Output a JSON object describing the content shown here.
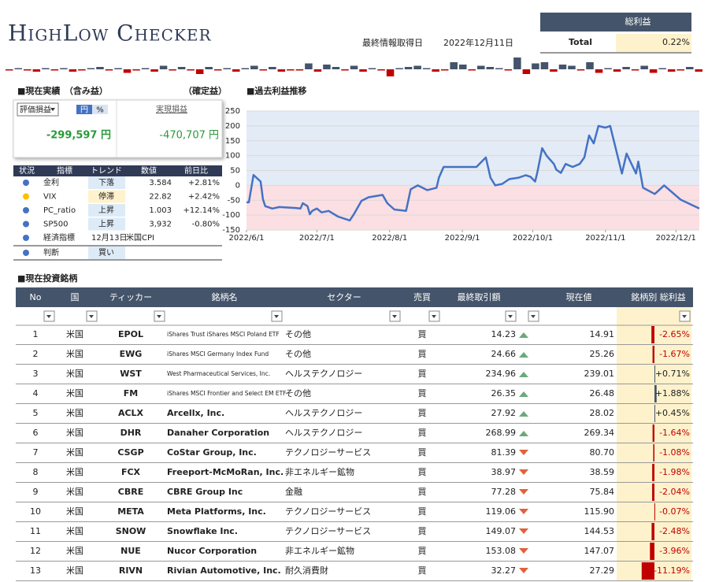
{
  "header": {
    "title": "HighLow Checker",
    "updated_label": "最終情報取得日",
    "updated_date": "2022年12月11日",
    "summary": {
      "heading": "総利益",
      "label": "Total",
      "value_label": "0.22%"
    }
  },
  "daily_bars": {
    "pos_color": "#44546a",
    "neg_color": "#c00000",
    "values": [
      -1,
      1,
      -1,
      -2,
      1,
      -1,
      1,
      -2,
      -1,
      1,
      2,
      -1,
      1,
      -3,
      -1,
      1,
      -2,
      3,
      -1,
      2,
      -1,
      -4,
      2,
      -1,
      1,
      -2,
      1,
      3,
      -1,
      2,
      -2,
      -1,
      -1,
      5,
      -2,
      4,
      2,
      -1,
      3,
      -2,
      1,
      -1,
      -6,
      1,
      2,
      3,
      1,
      -2,
      -1,
      6,
      4,
      -1,
      3,
      2,
      1,
      -1,
      10,
      -4,
      5,
      6,
      -2,
      4,
      3,
      -1,
      6,
      -3,
      1,
      -2,
      2,
      -1,
      3,
      -3,
      1,
      -2,
      -1,
      2,
      -2
    ]
  },
  "performance": {
    "title": "■現在実績　（含み益）",
    "realized_title": "（確定益）",
    "select": "評価損益",
    "unit_toggle": [
      "円",
      "%"
    ],
    "unrealized": "-299,597 円",
    "realized_label": "実現損益",
    "realized": "-470,707 円"
  },
  "indicators": {
    "headers": [
      "状況",
      "指標",
      "トレンド",
      "数値",
      "前日比"
    ],
    "rows": [
      {
        "status_color": "#4472c4",
        "name": "金利",
        "trend": "下落",
        "trend_bg": "#ddebf7",
        "value": "3.584",
        "change": "+2.81%"
      },
      {
        "status_color": "#ffc000",
        "name": "VIX",
        "trend": "停滞",
        "trend_bg": "#fff2cc",
        "value": "22.82",
        "change": "+2.42%"
      },
      {
        "status_color": "#4472c4",
        "name": "PC_ratio",
        "trend": "上昇",
        "trend_bg": "#ddebf7",
        "value": "1.003",
        "change": "+12.14%"
      },
      {
        "status_color": "#4472c4",
        "name": "SP500",
        "trend": "上昇",
        "trend_bg": "#ddebf7",
        "value": "3,932",
        "change": "-0.80%"
      }
    ],
    "econ": {
      "status_color": "#4472c4",
      "name": "経済指標",
      "date": "12月13日",
      "event": "米国CPI"
    },
    "judgment": {
      "status_color": "#4472c4",
      "name": "判断",
      "value": "買い",
      "value_bg": "#ddebf7"
    }
  },
  "chart_data": {
    "type": "line",
    "title": "■過去利益推移",
    "x": [
      "2022/6/1",
      "2022/6/2",
      "2022/6/4",
      "2022/6/7",
      "2022/6/8",
      "2022/6/9",
      "2022/6/12",
      "2022/6/15",
      "2022/6/22",
      "2022/6/24",
      "2022/6/25",
      "2022/6/27",
      "2022/6/28",
      "2022/6/29",
      "2022/7/1",
      "2022/7/3",
      "2022/7/6",
      "2022/7/10",
      "2022/7/15",
      "2022/7/17",
      "2022/7/20",
      "2022/7/23",
      "2022/7/29",
      "2022/7/31",
      "2022/8/3",
      "2022/8/8",
      "2022/8/10",
      "2022/8/13",
      "2022/8/17",
      "2022/8/21",
      "2022/8/22",
      "2022/8/24",
      "2022/8/29",
      "2022/9/7",
      "2022/9/11",
      "2022/9/13",
      "2022/9/15",
      "2022/9/18",
      "2022/9/21",
      "2022/9/25",
      "2022/9/28",
      "2022/9/30",
      "2022/10/2",
      "2022/10/3",
      "2022/10/5",
      "2022/10/7",
      "2022/10/10",
      "2022/10/11",
      "2022/10/13",
      "2022/10/15",
      "2022/10/18",
      "2022/10/21",
      "2022/10/23",
      "2022/10/25",
      "2022/10/27",
      "2022/10/29",
      "2022/11/1",
      "2022/11/3",
      "2022/11/8",
      "2022/11/10",
      "2022/11/14",
      "2022/11/15",
      "2022/11/17",
      "2022/11/22",
      "2022/11/26",
      "2022/12/3",
      "2022/12/11"
    ],
    "series": [
      {
        "color": "#4472c4",
        "values": [
          -57,
          -57,
          35,
          13,
          -47,
          -70,
          -78,
          -73,
          -76,
          -78,
          -60,
          -70,
          -97,
          -86,
          -78,
          -91,
          -86,
          -105,
          -118,
          -94,
          -52,
          -40,
          -32,
          -60,
          -81,
          -86,
          -13,
          0,
          -16,
          -8,
          26,
          62,
          62,
          62,
          94,
          26,
          0,
          5,
          21,
          26,
          34,
          29,
          13,
          45,
          125,
          99,
          72,
          53,
          42,
          72,
          62,
          72,
          94,
          168,
          141,
          200,
          194,
          200,
          40,
          107,
          40,
          80,
          -8,
          -29,
          0,
          -48,
          -78
        ]
      }
    ],
    "xlim": [
      "2022/6/1",
      "2022/12/11"
    ],
    "ylim": [
      -150,
      250
    ],
    "xticks": [
      "2022/6/1",
      "2022/7/1",
      "2022/8/1",
      "2022/9/1",
      "2022/10/1",
      "2022/11/1",
      "2022/12/1"
    ],
    "yticks": [
      -150,
      -100,
      -50,
      0,
      50,
      100,
      150,
      200,
      250
    ],
    "band_colors": {
      "positive": "#e3ebf6",
      "negative": "#fbdfe3"
    },
    "grid": true
  },
  "holdings": {
    "title": "■現在投資銘柄",
    "headers": [
      "No",
      "国",
      "ティッカー",
      "銘柄名",
      "セクター",
      "売買",
      "最終取引額",
      "現在値",
      "銘柄別 総利益"
    ],
    "rows": [
      {
        "no": 1,
        "country": "米国",
        "ticker": "EPOL",
        "name": "iShares Trust iShares MSCI Poland ETF",
        "sector": "その他",
        "side": "買",
        "last": "14.23",
        "trend": "up",
        "current": "14.91",
        "pnl": -2.65,
        "pnl_label": "-2.65%"
      },
      {
        "no": 2,
        "country": "米国",
        "ticker": "EWG",
        "name": "iShares MSCI Germany Index Fund",
        "sector": "その他",
        "side": "買",
        "last": "24.66",
        "trend": "up",
        "current": "25.26",
        "pnl": -1.67,
        "pnl_label": "-1.67%"
      },
      {
        "no": 3,
        "country": "米国",
        "ticker": "WST",
        "name": "West Pharmaceutical Services, Inc.",
        "sector": "ヘルステクノロジー",
        "side": "買",
        "last": "234.96",
        "trend": "up",
        "current": "239.01",
        "pnl": 0.71,
        "pnl_label": "+0.71%"
      },
      {
        "no": 4,
        "country": "米国",
        "ticker": "FM",
        "name": "iShares MSCI Frontier and Select EM ETF",
        "sector": "その他",
        "side": "買",
        "last": "26.35",
        "trend": "up",
        "current": "26.48",
        "pnl": 1.88,
        "pnl_label": "+1.88%"
      },
      {
        "no": 5,
        "country": "米国",
        "ticker": "ACLX",
        "name": "Arcellx, Inc.",
        "sector": "ヘルステクノロジー",
        "side": "買",
        "last": "27.92",
        "trend": "up",
        "current": "28.02",
        "pnl": 0.45,
        "pnl_label": "+0.45%"
      },
      {
        "no": 6,
        "country": "米国",
        "ticker": "DHR",
        "name": "Danaher Corporation",
        "sector": "ヘルステクノロジー",
        "side": "買",
        "last": "268.99",
        "trend": "up",
        "current": "269.34",
        "pnl": -1.64,
        "pnl_label": "-1.64%"
      },
      {
        "no": 7,
        "country": "米国",
        "ticker": "CSGP",
        "name": "CoStar Group, Inc.",
        "sector": "テクノロジーサービス",
        "side": "買",
        "last": "81.39",
        "trend": "down",
        "current": "80.70",
        "pnl": -1.08,
        "pnl_label": "-1.08%"
      },
      {
        "no": 8,
        "country": "米国",
        "ticker": "FCX",
        "name": "Freeport-McMoRan, Inc.",
        "sector": "非エネルギー鉱物",
        "side": "買",
        "last": "38.97",
        "trend": "down",
        "current": "38.59",
        "pnl": -1.98,
        "pnl_label": "-1.98%"
      },
      {
        "no": 9,
        "country": "米国",
        "ticker": "CBRE",
        "name": "CBRE Group Inc",
        "sector": "金融",
        "side": "買",
        "last": "77.28",
        "trend": "down",
        "current": "75.84",
        "pnl": -2.04,
        "pnl_label": "-2.04%"
      },
      {
        "no": 10,
        "country": "米国",
        "ticker": "META",
        "name": "Meta Platforms, Inc.",
        "sector": "テクノロジーサービス",
        "side": "買",
        "last": "119.06",
        "trend": "down",
        "current": "115.90",
        "pnl": -0.07,
        "pnl_label": "-0.07%"
      },
      {
        "no": 11,
        "country": "米国",
        "ticker": "SNOW",
        "name": "Snowflake Inc.",
        "sector": "テクノロジーサービス",
        "side": "買",
        "last": "149.07",
        "trend": "down",
        "current": "144.53",
        "pnl": -2.48,
        "pnl_label": "-2.48%"
      },
      {
        "no": 12,
        "country": "米国",
        "ticker": "NUE",
        "name": "Nucor Corporation",
        "sector": "非エネルギー鉱物",
        "side": "買",
        "last": "153.08",
        "trend": "down",
        "current": "147.07",
        "pnl": -3.96,
        "pnl_label": "-3.96%"
      },
      {
        "no": 13,
        "country": "米国",
        "ticker": "RIVN",
        "name": "Rivian Automotive, Inc.",
        "sector": "耐久消費財",
        "side": "買",
        "last": "32.27",
        "trend": "down",
        "current": "27.29",
        "pnl": -11.19,
        "pnl_label": "-11.19%"
      }
    ]
  }
}
